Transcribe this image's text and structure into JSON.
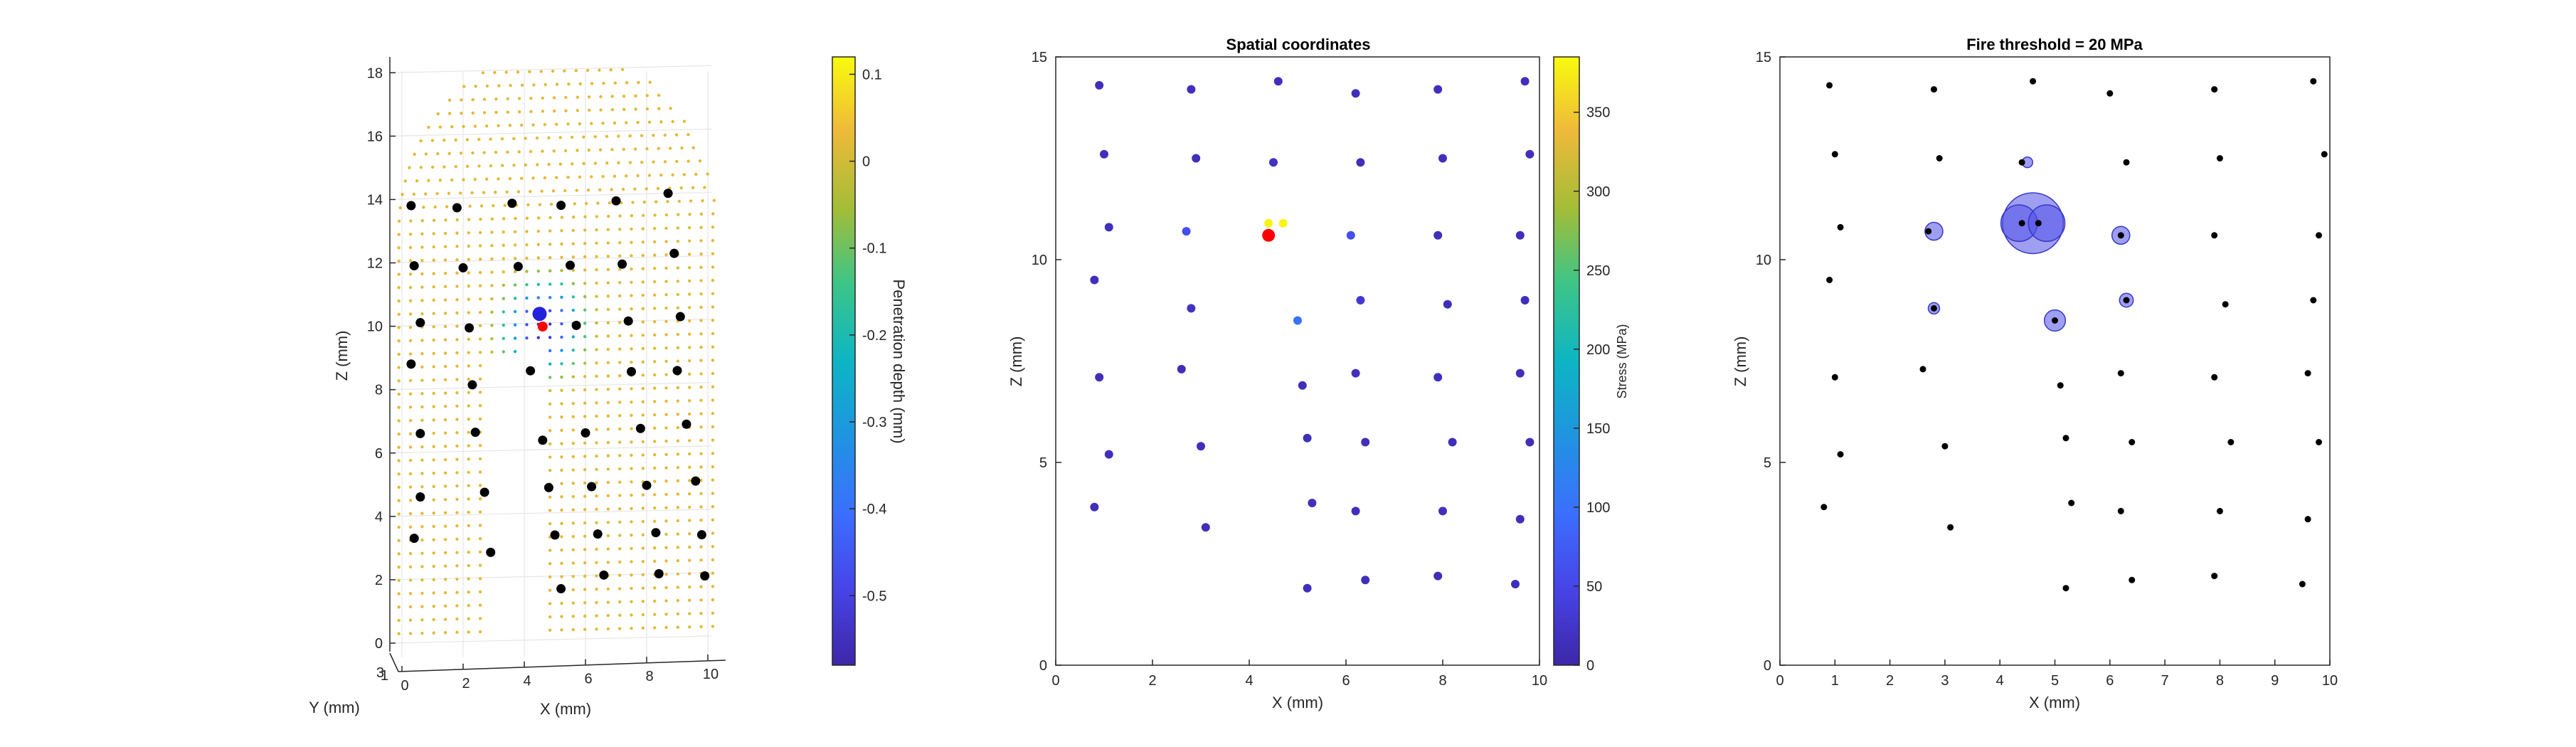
{
  "colors": {
    "electrode": "#000000",
    "stim_marker": "#ff0000",
    "circle_fill": "#5050e8",
    "circle_edge": "#3838c8",
    "axis": "#262626",
    "grid": "#e6e6e6",
    "colormap": "parula"
  },
  "chart_data": [
    {
      "type": "scatter",
      "panel": "3d-view",
      "title": "",
      "xlabel": "X (mm)",
      "ylabel": "Y (mm)",
      "zlabel": "Z (mm)",
      "xlim": [
        0,
        10
      ],
      "zlim": [
        0,
        18.5
      ],
      "x_ticks": [
        0,
        2,
        4,
        6,
        8,
        10
      ],
      "y_ticks": [
        1,
        3
      ],
      "z_ticks": [
        0,
        2,
        4,
        6,
        8,
        10,
        12,
        14,
        16,
        18
      ],
      "grid": true,
      "surface_points_description_color": "yellow-orange",
      "colorbar": {
        "label": "Penetration depth (mm)",
        "range": [
          -0.58,
          0.12
        ],
        "ticks": [
          "0.1",
          "0",
          "-0.1",
          "-0.2",
          "-0.3",
          "-0.4",
          "-0.5"
        ]
      },
      "electrodes": [
        {
          "x": 0.3,
          "z": 13.8
        },
        {
          "x": 1.8,
          "z": 13.7
        },
        {
          "x": 3.6,
          "z": 13.8
        },
        {
          "x": 5.2,
          "z": 13.7
        },
        {
          "x": 7.0,
          "z": 13.8
        },
        {
          "x": 8.7,
          "z": 14.0
        },
        {
          "x": 0.4,
          "z": 11.9
        },
        {
          "x": 2.0,
          "z": 11.8
        },
        {
          "x": 3.8,
          "z": 11.8
        },
        {
          "x": 5.5,
          "z": 11.8
        },
        {
          "x": 7.2,
          "z": 11.8
        },
        {
          "x": 8.9,
          "z": 12.1
        },
        {
          "x": 0.6,
          "z": 10.1
        },
        {
          "x": 2.2,
          "z": 9.9
        },
        {
          "x": 5.7,
          "z": 9.9
        },
        {
          "x": 7.4,
          "z": 10.0
        },
        {
          "x": 9.1,
          "z": 10.1
        },
        {
          "x": 0.3,
          "z": 8.8
        },
        {
          "x": 2.3,
          "z": 8.1
        },
        {
          "x": 4.2,
          "z": 8.5
        },
        {
          "x": 7.5,
          "z": 8.4
        },
        {
          "x": 9.0,
          "z": 8.4
        },
        {
          "x": 0.6,
          "z": 6.6
        },
        {
          "x": 2.4,
          "z": 6.6
        },
        {
          "x": 4.6,
          "z": 6.3
        },
        {
          "x": 6.0,
          "z": 6.5
        },
        {
          "x": 7.8,
          "z": 6.6
        },
        {
          "x": 9.3,
          "z": 6.7
        },
        {
          "x": 0.6,
          "z": 4.6
        },
        {
          "x": 2.7,
          "z": 4.7
        },
        {
          "x": 4.8,
          "z": 4.8
        },
        {
          "x": 6.2,
          "z": 4.8
        },
        {
          "x": 8.0,
          "z": 4.8
        },
        {
          "x": 9.6,
          "z": 4.9
        },
        {
          "x": 0.4,
          "z": 3.3
        },
        {
          "x": 2.9,
          "z": 2.8
        },
        {
          "x": 5.0,
          "z": 3.3
        },
        {
          "x": 6.4,
          "z": 3.3
        },
        {
          "x": 8.3,
          "z": 3.3
        },
        {
          "x": 9.8,
          "z": 3.2
        },
        {
          "x": 5.2,
          "z": 1.6
        },
        {
          "x": 6.6,
          "z": 2.0
        },
        {
          "x": 8.4,
          "z": 2.0
        },
        {
          "x": 9.9,
          "z": 1.9
        }
      ],
      "stimulation_site": {
        "x": 4.6,
        "z": 9.9
      },
      "indenter": {
        "x": 4.5,
        "z": 10.3
      }
    },
    {
      "type": "scatter",
      "panel": "spatial",
      "title": "Spatial coordinates",
      "xlabel": "X (mm)",
      "ylabel": "Z (mm)",
      "xlim": [
        0,
        10
      ],
      "ylim": [
        0,
        15
      ],
      "x_ticks": [
        0,
        2,
        4,
        6,
        8,
        10
      ],
      "y_ticks": [
        0,
        5,
        10,
        15
      ],
      "colorbar": {
        "label": "Stress (MPa)",
        "range": [
          0,
          385
        ],
        "ticks": [
          0,
          50,
          100,
          150,
          200,
          250,
          300,
          350
        ]
      },
      "stimulation_site": {
        "x": 4.4,
        "y": 10.6
      },
      "points": [
        {
          "x": 0.9,
          "y": 14.3,
          "stress": 15
        },
        {
          "x": 2.8,
          "y": 14.2,
          "stress": 15
        },
        {
          "x": 4.6,
          "y": 14.4,
          "stress": 15
        },
        {
          "x": 6.2,
          "y": 14.1,
          "stress": 15
        },
        {
          "x": 7.9,
          "y": 14.2,
          "stress": 15
        },
        {
          "x": 9.7,
          "y": 14.4,
          "stress": 15
        },
        {
          "x": 1.0,
          "y": 12.6,
          "stress": 15
        },
        {
          "x": 2.9,
          "y": 12.5,
          "stress": 15
        },
        {
          "x": 4.5,
          "y": 12.4,
          "stress": 20
        },
        {
          "x": 6.3,
          "y": 12.4,
          "stress": 15
        },
        {
          "x": 8.0,
          "y": 12.5,
          "stress": 15
        },
        {
          "x": 9.8,
          "y": 12.6,
          "stress": 15
        },
        {
          "x": 1.1,
          "y": 10.8,
          "stress": 15
        },
        {
          "x": 2.7,
          "y": 10.7,
          "stress": 60
        },
        {
          "x": 4.4,
          "y": 10.9,
          "stress": 380
        },
        {
          "x": 4.7,
          "y": 10.9,
          "stress": 380
        },
        {
          "x": 6.1,
          "y": 10.6,
          "stress": 60
        },
        {
          "x": 7.9,
          "y": 10.6,
          "stress": 15
        },
        {
          "x": 9.6,
          "y": 10.6,
          "stress": 15
        },
        {
          "x": 0.8,
          "y": 9.5,
          "stress": 15
        },
        {
          "x": 2.8,
          "y": 8.8,
          "stress": 20
        },
        {
          "x": 5.0,
          "y": 8.5,
          "stress": 100
        },
        {
          "x": 6.3,
          "y": 9.0,
          "stress": 30
        },
        {
          "x": 8.1,
          "y": 8.9,
          "stress": 15
        },
        {
          "x": 9.7,
          "y": 9.0,
          "stress": 15
        },
        {
          "x": 0.9,
          "y": 7.1,
          "stress": 15
        },
        {
          "x": 2.6,
          "y": 7.3,
          "stress": 15
        },
        {
          "x": 5.1,
          "y": 6.9,
          "stress": 15
        },
        {
          "x": 6.2,
          "y": 7.2,
          "stress": 15
        },
        {
          "x": 7.9,
          "y": 7.1,
          "stress": 15
        },
        {
          "x": 9.6,
          "y": 7.2,
          "stress": 15
        },
        {
          "x": 1.1,
          "y": 5.2,
          "stress": 15
        },
        {
          "x": 3.0,
          "y": 5.4,
          "stress": 15
        },
        {
          "x": 5.2,
          "y": 5.6,
          "stress": 15
        },
        {
          "x": 6.4,
          "y": 5.5,
          "stress": 15
        },
        {
          "x": 8.2,
          "y": 5.5,
          "stress": 15
        },
        {
          "x": 9.8,
          "y": 5.5,
          "stress": 15
        },
        {
          "x": 0.8,
          "y": 3.9,
          "stress": 15
        },
        {
          "x": 3.1,
          "y": 3.4,
          "stress": 15
        },
        {
          "x": 5.3,
          "y": 4.0,
          "stress": 15
        },
        {
          "x": 6.2,
          "y": 3.8,
          "stress": 15
        },
        {
          "x": 8.0,
          "y": 3.8,
          "stress": 15
        },
        {
          "x": 9.6,
          "y": 3.6,
          "stress": 15
        },
        {
          "x": 5.2,
          "y": 1.9,
          "stress": 15
        },
        {
          "x": 6.4,
          "y": 2.1,
          "stress": 15
        },
        {
          "x": 7.9,
          "y": 2.2,
          "stress": 15
        },
        {
          "x": 9.5,
          "y": 2.0,
          "stress": 15
        }
      ]
    },
    {
      "type": "scatter",
      "panel": "fire-threshold",
      "title": "Fire threshold = 20 MPa",
      "xlabel": "X (mm)",
      "ylabel": "Z (mm)",
      "xlim": [
        0,
        10
      ],
      "ylim": [
        0,
        15
      ],
      "x_ticks": [
        0,
        1,
        2,
        3,
        4,
        5,
        6,
        7,
        8,
        9,
        10
      ],
      "y_ticks": [
        0,
        5,
        10,
        15
      ],
      "points": [
        {
          "x": 0.9,
          "y": 14.3
        },
        {
          "x": 2.8,
          "y": 14.2
        },
        {
          "x": 4.6,
          "y": 14.4
        },
        {
          "x": 6.0,
          "y": 14.1
        },
        {
          "x": 7.9,
          "y": 14.2
        },
        {
          "x": 9.7,
          "y": 14.4
        },
        {
          "x": 1.0,
          "y": 12.6
        },
        {
          "x": 2.9,
          "y": 12.5
        },
        {
          "x": 4.4,
          "y": 12.4
        },
        {
          "x": 6.3,
          "y": 12.4
        },
        {
          "x": 8.0,
          "y": 12.5
        },
        {
          "x": 9.9,
          "y": 12.6
        },
        {
          "x": 1.1,
          "y": 10.8
        },
        {
          "x": 2.7,
          "y": 10.7
        },
        {
          "x": 4.4,
          "y": 10.9
        },
        {
          "x": 4.7,
          "y": 10.9
        },
        {
          "x": 6.2,
          "y": 10.6
        },
        {
          "x": 7.9,
          "y": 10.6
        },
        {
          "x": 9.8,
          "y": 10.6
        },
        {
          "x": 0.9,
          "y": 9.5
        },
        {
          "x": 2.8,
          "y": 8.8
        },
        {
          "x": 5.0,
          "y": 8.5
        },
        {
          "x": 6.3,
          "y": 9.0
        },
        {
          "x": 8.1,
          "y": 8.9
        },
        {
          "x": 9.7,
          "y": 9.0
        },
        {
          "x": 1.0,
          "y": 7.1
        },
        {
          "x": 2.6,
          "y": 7.3
        },
        {
          "x": 5.1,
          "y": 6.9
        },
        {
          "x": 6.2,
          "y": 7.2
        },
        {
          "x": 7.9,
          "y": 7.1
        },
        {
          "x": 9.6,
          "y": 7.2
        },
        {
          "x": 1.1,
          "y": 5.2
        },
        {
          "x": 3.0,
          "y": 5.4
        },
        {
          "x": 5.2,
          "y": 5.6
        },
        {
          "x": 6.4,
          "y": 5.5
        },
        {
          "x": 8.2,
          "y": 5.5
        },
        {
          "x": 9.8,
          "y": 5.5
        },
        {
          "x": 0.8,
          "y": 3.9
        },
        {
          "x": 3.1,
          "y": 3.4
        },
        {
          "x": 5.3,
          "y": 4.0
        },
        {
          "x": 6.2,
          "y": 3.8
        },
        {
          "x": 8.0,
          "y": 3.8
        },
        {
          "x": 9.6,
          "y": 3.6
        },
        {
          "x": 5.2,
          "y": 1.9
        },
        {
          "x": 6.4,
          "y": 2.1
        },
        {
          "x": 7.9,
          "y": 2.2
        },
        {
          "x": 9.5,
          "y": 2.0
        }
      ],
      "firing_circles": [
        {
          "x": 4.6,
          "y": 10.9,
          "radius": 0.75
        },
        {
          "x": 4.35,
          "y": 10.9,
          "radius": 0.45
        },
        {
          "x": 4.85,
          "y": 10.9,
          "radius": 0.45
        },
        {
          "x": 2.8,
          "y": 10.7,
          "radius": 0.22
        },
        {
          "x": 6.2,
          "y": 10.6,
          "radius": 0.22
        },
        {
          "x": 4.5,
          "y": 12.4,
          "radius": 0.13
        },
        {
          "x": 2.8,
          "y": 8.8,
          "radius": 0.14
        },
        {
          "x": 5.0,
          "y": 8.5,
          "radius": 0.26
        },
        {
          "x": 6.3,
          "y": 9.0,
          "radius": 0.17
        }
      ]
    }
  ]
}
